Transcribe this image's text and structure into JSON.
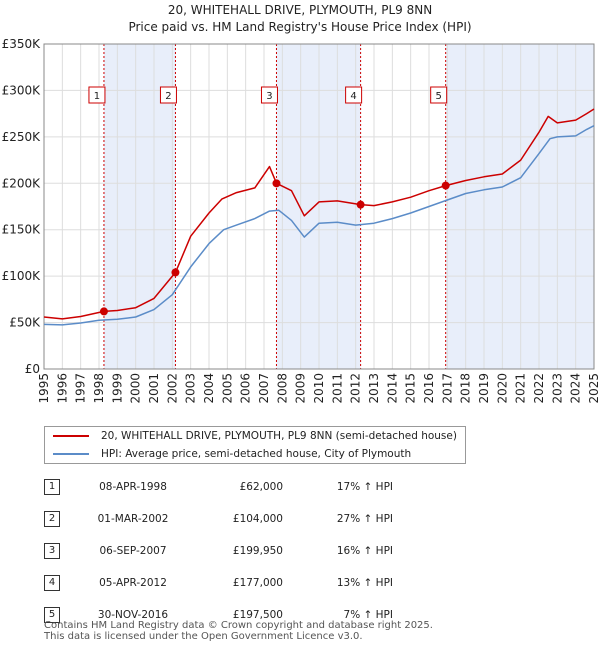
{
  "chart_data": {
    "type": "line",
    "title": "20, WHITEHALL DRIVE, PLYMOUTH, PL9 8NN",
    "subtitle": "Price paid vs. HM Land Registry's House Price Index (HPI)",
    "xlabel": "",
    "ylabel": "",
    "xlim": [
      1995,
      2025
    ],
    "ylim": [
      0,
      350000
    ],
    "x_ticks": [
      "1995",
      "1996",
      "1997",
      "1998",
      "1999",
      "2000",
      "2001",
      "2002",
      "2003",
      "2004",
      "2005",
      "2006",
      "2007",
      "2008",
      "2009",
      "2010",
      "2011",
      "2012",
      "2013",
      "2014",
      "2015",
      "2016",
      "2017",
      "2018",
      "2019",
      "2020",
      "2021",
      "2022",
      "2023",
      "2024",
      "2025"
    ],
    "y_ticks": [
      {
        "value": 0,
        "label": "£0"
      },
      {
        "value": 50000,
        "label": "£50K"
      },
      {
        "value": 100000,
        "label": "£100K"
      },
      {
        "value": 150000,
        "label": "£150K"
      },
      {
        "value": 200000,
        "label": "£200K"
      },
      {
        "value": 250000,
        "label": "£250K"
      },
      {
        "value": 300000,
        "label": "£300K"
      },
      {
        "value": 350000,
        "label": "£350K"
      }
    ],
    "series": [
      {
        "name": "20, WHITEHALL DRIVE, PLYMOUTH, PL9 8NN (semi-detached house)",
        "color": "#cc0000",
        "points": [
          [
            1995.0,
            56000
          ],
          [
            1996.0,
            54000
          ],
          [
            1997.0,
            56500
          ],
          [
            1998.27,
            62000
          ],
          [
            1999.0,
            63000
          ],
          [
            2000.0,
            66000
          ],
          [
            2001.0,
            76000
          ],
          [
            2002.17,
            104000
          ],
          [
            2003.0,
            143000
          ],
          [
            2004.0,
            168000
          ],
          [
            2004.7,
            183000
          ],
          [
            2005.5,
            190000
          ],
          [
            2006.5,
            195000
          ],
          [
            2007.3,
            218000
          ],
          [
            2007.68,
            199950
          ],
          [
            2008.5,
            192000
          ],
          [
            2009.2,
            165000
          ],
          [
            2010.0,
            180000
          ],
          [
            2011.0,
            181000
          ],
          [
            2012.27,
            177000
          ],
          [
            2013.0,
            176000
          ],
          [
            2014.0,
            180000
          ],
          [
            2015.0,
            185000
          ],
          [
            2016.0,
            192000
          ],
          [
            2016.91,
            197500
          ],
          [
            2018.0,
            203000
          ],
          [
            2019.0,
            207000
          ],
          [
            2020.0,
            210000
          ],
          [
            2021.0,
            225000
          ],
          [
            2022.0,
            255000
          ],
          [
            2022.5,
            272000
          ],
          [
            2023.0,
            265000
          ],
          [
            2024.0,
            268000
          ],
          [
            2024.6,
            275000
          ],
          [
            2025.0,
            280000
          ]
        ]
      },
      {
        "name": "HPI: Average price, semi-detached house, City of Plymouth",
        "color": "#5b8cc8",
        "points": [
          [
            1995.0,
            48000
          ],
          [
            1996.0,
            47500
          ],
          [
            1997.0,
            49500
          ],
          [
            1998.0,
            52500
          ],
          [
            1999.0,
            53500
          ],
          [
            2000.0,
            56000
          ],
          [
            2001.0,
            64000
          ],
          [
            2002.0,
            80000
          ],
          [
            2003.0,
            110000
          ],
          [
            2004.0,
            135000
          ],
          [
            2004.8,
            150000
          ],
          [
            2005.5,
            155000
          ],
          [
            2006.5,
            162000
          ],
          [
            2007.3,
            170000
          ],
          [
            2007.8,
            171000
          ],
          [
            2008.5,
            160000
          ],
          [
            2009.2,
            142000
          ],
          [
            2010.0,
            157000
          ],
          [
            2011.0,
            158000
          ],
          [
            2012.0,
            155000
          ],
          [
            2013.0,
            157000
          ],
          [
            2014.0,
            162000
          ],
          [
            2015.0,
            168000
          ],
          [
            2016.0,
            175000
          ],
          [
            2017.0,
            182000
          ],
          [
            2018.0,
            189000
          ],
          [
            2019.0,
            193000
          ],
          [
            2020.0,
            196000
          ],
          [
            2021.0,
            206000
          ],
          [
            2022.0,
            232000
          ],
          [
            2022.6,
            248000
          ],
          [
            2023.0,
            250000
          ],
          [
            2024.0,
            251000
          ],
          [
            2024.6,
            258000
          ],
          [
            2025.0,
            262000
          ]
        ]
      }
    ],
    "sales": [
      {
        "id": "1",
        "x": 1998.27,
        "value": 62000,
        "date": "08-APR-1998",
        "price": "£62,000",
        "hpi": "17% ↑ HPI"
      },
      {
        "id": "2",
        "x": 2002.17,
        "value": 104000,
        "date": "01-MAR-2002",
        "price": "£104,000",
        "hpi": "27% ↑ HPI"
      },
      {
        "id": "3",
        "x": 2007.68,
        "value": 199950,
        "date": "06-SEP-2007",
        "price": "£199,950",
        "hpi": "16% ↑ HPI"
      },
      {
        "id": "4",
        "x": 2012.27,
        "value": 177000,
        "date": "05-APR-2012",
        "price": "£177,000",
        "hpi": "13% ↑ HPI"
      },
      {
        "id": "5",
        "x": 2016.91,
        "value": 197500,
        "date": "30-NOV-2016",
        "price": "£197,500",
        "hpi": "7% ↑ HPI"
      }
    ],
    "shaded_periods": [
      [
        1998.27,
        2002.17
      ],
      [
        2007.68,
        2012.27
      ],
      [
        2016.91,
        2025.0
      ]
    ],
    "colors": {
      "shade": "#e8eefa",
      "sale_line": "#cc0000",
      "grid": "#dddddd",
      "axis": "#888888"
    }
  },
  "legend": {
    "property_label": "20, WHITEHALL DRIVE, PLYMOUTH, PL9 8NN (semi-detached house)",
    "hpi_label": "HPI: Average price, semi-detached house, City of Plymouth"
  },
  "footer": {
    "line1": "Contains HM Land Registry data © Crown copyright and database right 2025.",
    "line2": "This data is licensed under the Open Government Licence v3.0."
  }
}
